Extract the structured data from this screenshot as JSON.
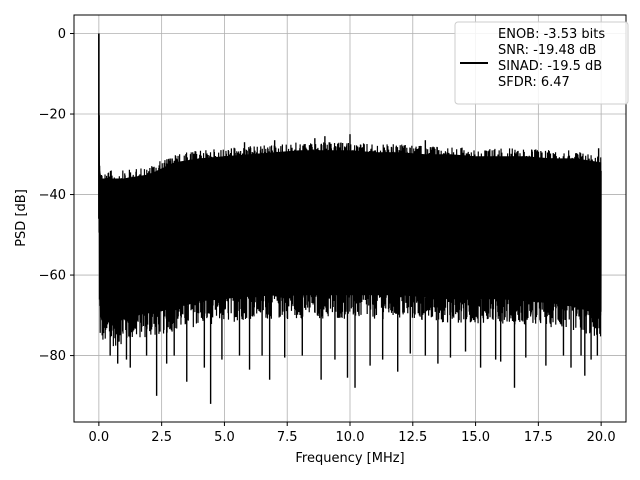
{
  "chart_data": {
    "type": "line",
    "title": "",
    "xlabel": "Frequency [MHz]",
    "ylabel": "PSD [dB]",
    "xlim": [
      -0.99,
      20.99
    ],
    "ylim": [
      -96.5,
      4.6
    ],
    "x_ticks": [
      0.0,
      2.5,
      5.0,
      7.5,
      10.0,
      12.5,
      15.0,
      17.5,
      20.0
    ],
    "x_tick_labels": [
      "0.0",
      "2.5",
      "5.0",
      "7.5",
      "10.0",
      "12.5",
      "15.0",
      "17.5",
      "20.0"
    ],
    "y_ticks": [
      0,
      -20,
      -40,
      -60,
      -80
    ],
    "y_tick_labels": [
      "0",
      "−20",
      "−40",
      "−60",
      "−80"
    ],
    "grid": true,
    "legend_position": "top-right",
    "series": [
      {
        "name": "ENOB: -3.53 bits\nSNR: -19.48 dB\nSINAD: -19.5 dB\nSFDR: 6.47",
        "color": "#000000",
        "peak": {
          "x": 0.0,
          "y": 0.0
        },
        "envelope_x": [
          0.0,
          0.02,
          0.05,
          0.1,
          0.5,
          1.0,
          1.5,
          2.0,
          2.5,
          3.0,
          3.5,
          4.0,
          5.0,
          6.0,
          7.0,
          8.0,
          9.0,
          10.0,
          11.0,
          12.0,
          13.0,
          14.0,
          15.0,
          16.0,
          17.0,
          18.0,
          19.0,
          20.0
        ],
        "envelope_top": [
          0.0,
          -24.0,
          -32.0,
          -34.0,
          -34.0,
          -34.0,
          -33.5,
          -33.0,
          -31.5,
          -30.0,
          -29.5,
          -29.0,
          -28.5,
          -28.0,
          -27.5,
          -27.0,
          -27.0,
          -27.0,
          -27.5,
          -27.5,
          -28.0,
          -28.0,
          -28.5,
          -28.5,
          -28.5,
          -29.0,
          -29.0,
          -30.0
        ],
        "envelope_bottom": [
          -46.0,
          -72.0,
          -76.0,
          -77.0,
          -78.0,
          -77.0,
          -76.0,
          -75.5,
          -75.0,
          -74.0,
          -73.5,
          -72.5,
          -72.0,
          -71.0,
          -71.0,
          -71.0,
          -71.0,
          -71.0,
          -71.0,
          -71.0,
          -71.5,
          -72.0,
          -72.0,
          -72.0,
          -72.5,
          -73.0,
          -74.0,
          -76.0
        ],
        "upper_spikes": [
          [
            7.0,
            -26.5
          ],
          [
            8.6,
            -26.0
          ],
          [
            9.0,
            -25.5
          ],
          [
            10.0,
            -25.0
          ],
          [
            13.0,
            -26.5
          ],
          [
            5.8,
            -27.0
          ],
          [
            19.9,
            -28.5
          ]
        ],
        "lower_spikes": [
          [
            0.45,
            -80.0
          ],
          [
            0.75,
            -82.0
          ],
          [
            1.1,
            -81.0
          ],
          [
            1.25,
            -83.0
          ],
          [
            1.9,
            -80.0
          ],
          [
            2.3,
            -90.0
          ],
          [
            2.7,
            -82.0
          ],
          [
            3.0,
            -80.0
          ],
          [
            3.5,
            -86.5
          ],
          [
            4.2,
            -83.0
          ],
          [
            4.45,
            -92.0
          ],
          [
            4.9,
            -81.0
          ],
          [
            5.6,
            -80.0
          ],
          [
            6.0,
            -83.5
          ],
          [
            6.5,
            -80.0
          ],
          [
            6.8,
            -86.0
          ],
          [
            7.4,
            -80.5
          ],
          [
            8.1,
            -80.0
          ],
          [
            8.85,
            -86.0
          ],
          [
            9.4,
            -81.0
          ],
          [
            9.9,
            -85.5
          ],
          [
            10.2,
            -88.0
          ],
          [
            10.8,
            -82.5
          ],
          [
            11.3,
            -81.0
          ],
          [
            11.9,
            -84.0
          ],
          [
            12.4,
            -79.5
          ],
          [
            13.0,
            -80.0
          ],
          [
            13.5,
            -82.0
          ],
          [
            14.0,
            -80.5
          ],
          [
            14.6,
            -79.0
          ],
          [
            15.2,
            -83.0
          ],
          [
            15.8,
            -81.0
          ],
          [
            16.0,
            -81.5
          ],
          [
            16.55,
            -88.0
          ],
          [
            17.0,
            -80.5
          ],
          [
            17.8,
            -82.5
          ],
          [
            18.5,
            -80.0
          ],
          [
            18.8,
            -83.0
          ],
          [
            19.2,
            -80.0
          ],
          [
            19.35,
            -85.0
          ],
          [
            19.6,
            -81.0
          ],
          [
            19.85,
            -80.0
          ]
        ]
      }
    ]
  }
}
